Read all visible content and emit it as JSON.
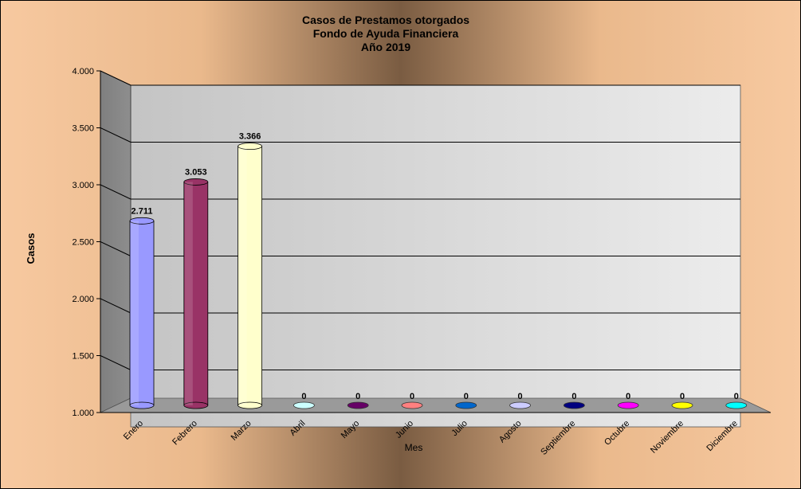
{
  "chart_data": {
    "type": "bar",
    "title_lines": [
      "Casos de Prestamos otorgados",
      "Fondo de Ayuda  Financiera",
      "Año  2019"
    ],
    "xlabel": "Mes",
    "ylabel": "Casos",
    "ylim": [
      1000,
      4000
    ],
    "yticks": [
      1000,
      1500,
      2000,
      2500,
      3000,
      3500,
      4000
    ],
    "ytick_labels": [
      "1.000",
      "1.500",
      "2.000",
      "2.500",
      "3.000",
      "3.500",
      "4.000"
    ],
    "categories": [
      "Enero",
      "Febrero",
      "Marzo",
      "Abril",
      "Mayo",
      "Junio",
      "Julio",
      "Agosto",
      "Septiembre",
      "Octubre",
      "Noviembre",
      "Diciembre"
    ],
    "values": [
      2711,
      3053,
      3366,
      0,
      0,
      0,
      0,
      0,
      0,
      0,
      0,
      0
    ],
    "value_labels": [
      "2.711",
      "3.053",
      "3.366",
      "0",
      "0",
      "0",
      "0",
      "0",
      "0",
      "0",
      "0",
      "0"
    ],
    "colors": [
      "#9999ff",
      "#993366",
      "#ffffcc",
      "#ccffff",
      "#660066",
      "#ff8080",
      "#0066cc",
      "#ccccff",
      "#000080",
      "#ff00ff",
      "#ffff00",
      "#00ffff"
    ],
    "grid": true,
    "legend": "none"
  }
}
